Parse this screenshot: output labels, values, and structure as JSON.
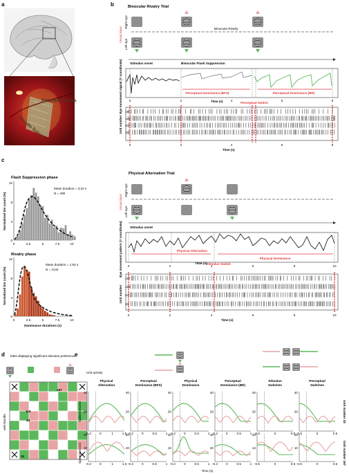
{
  "panel_letters": {
    "a": "a",
    "b": "b",
    "c": "c",
    "d": "d",
    "e": "e"
  },
  "colors": {
    "red": "#e0383a",
    "green": "#5cb85c",
    "pink": "#e8a4a4",
    "gray": "#8f8f8f",
    "orange": "#c9542a",
    "dark": "#222222"
  },
  "panel_a": {
    "sulcus_principal": "Principal Sulcus",
    "sulcus_arcuate": "Arcuate Sulcus"
  },
  "panel_b": {
    "title": "Binocular Rivalry Trial",
    "visual_input": "Visual input",
    "right_eye": "Right eye",
    "left_eye": "Left eye",
    "binocular_rivalry": "Binocular Rivalry",
    "stimulus_onset": "Stimulus onset",
    "flash_suppression": "Binocular Flash Suppression",
    "eye_signal_label": "Eye movement signal (Y coordinate)",
    "time_label": "Time (s)",
    "time_ticks": [
      "0",
      "2",
      "4",
      "6",
      "8"
    ],
    "perc_bfs": "Perceptual Dominance (BFS)",
    "perc_br": "Perceptual Dominance (BR)",
    "perc_switch": "Perceptual Switch",
    "unit_label": "Unit number",
    "units": [
      "167",
      "119",
      "44",
      "33"
    ]
  },
  "panel_c": {
    "title_fs": "Flash Suppression phase",
    "title_riv": "Rivalry phase",
    "mean_fs": "Mean duration = 3.22 s",
    "n_fs": "N = 490",
    "mean_riv": "Mean duration = 1.92 s",
    "n_riv": "N = 1144",
    "ylabel": "Normalized bin count (%)",
    "xlabel": "Dominance durations (s)",
    "yticks_fs": [
      "12",
      "8",
      "4",
      "0"
    ],
    "yticks_riv": [
      "12",
      "8",
      "4",
      "0"
    ],
    "xticks": [
      "0",
      "2.5",
      "5",
      "7.5",
      "10"
    ]
  },
  "panel_c_right": {
    "title": "Physical Alternation Trial",
    "visual_input": "Visual input",
    "right_eye": "Right eye",
    "left_eye": "Left eye",
    "stimulus_onset": "Stimulus onset",
    "eye_pattern_label": "Eye movement pattern (Y coordinate)",
    "time_label": "Time (s)",
    "time_ticks": [
      "0",
      "2",
      "4",
      "6",
      "8",
      "10"
    ],
    "phys_alt": "Physical Alternation",
    "phys_dom": "Physical Dominance",
    "stim_switch": "Stimulus Switch",
    "unit_label": "Unit number",
    "units": [
      "167",
      "119",
      "44",
      "33"
    ]
  },
  "panel_d": {
    "title": "Sites displaying significant stimulus preference",
    "wire_bundle": "wire bundle",
    "labels": [
      "167",
      "119",
      "44",
      "33"
    ],
    "grid": [
      "XGPGGPGX",
      "PWGPWGPP",
      "GPWGPGWG",
      "WGPPGWPG",
      "GWPGPGGP",
      "PGGWGPWG",
      "GPWGPWGP",
      "XGPGWGPX"
    ]
  },
  "panel_e": {
    "unit_activity": "Unit activity",
    "columns": [
      "Physical Alternation",
      "Perceptual Dominance (BFS)",
      "Physical Dominance",
      "Perceptual Dominance (BR)",
      "Stimulus Switches",
      "Perceptual Switches"
    ],
    "row_labels": [
      "Unit number 33",
      "Unit number 167"
    ],
    "ylabel": "Spikes/second",
    "time_label": "Time (s)",
    "row1_ymax": [
      "40",
      "40",
      "40",
      "40",
      "40",
      "40"
    ],
    "row2_ymax": [
      "20",
      "40",
      "20",
      "40",
      "26",
      "20"
    ],
    "row1_mid": [
      "20",
      "20",
      "20",
      "20",
      "20",
      "20"
    ],
    "row2_mid": [
      "10",
      "20",
      "10",
      "20",
      "13",
      "10"
    ],
    "xticks_a": [
      "-0.2",
      "0",
      "1",
      "1.5"
    ],
    "xticks_b": [
      "-0.2",
      "0",
      "0.5",
      "1"
    ],
    "xticks_c": [
      "-0.5",
      "0",
      "0.5"
    ]
  }
}
